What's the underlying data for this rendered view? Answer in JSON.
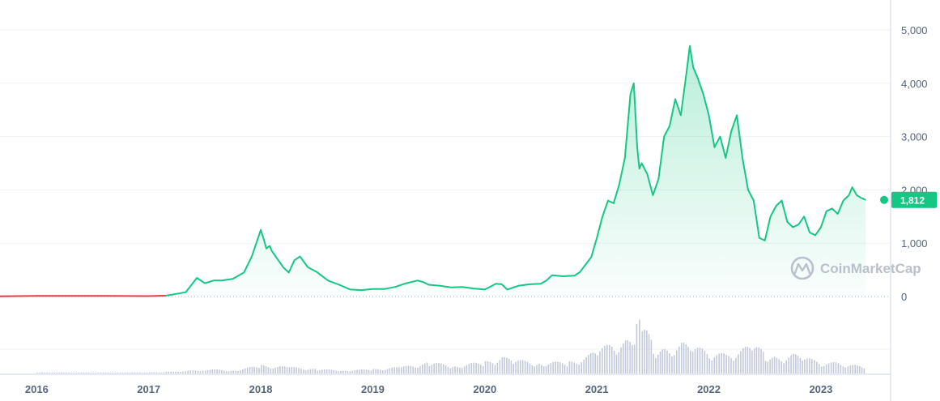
{
  "colors": {
    "line": "#16c784",
    "pre_line": "#ea3943",
    "volume": "#b8bfd4",
    "grid": "#eff2f5",
    "axis": "#cfd6e4",
    "badge": "#16c784",
    "watermark": "#b9c0cc"
  },
  "watermark": "CoinMarketCap",
  "watermark_icon": "coinmarketcap-logo-icon",
  "current_price_label": "1,812",
  "chart_data": {
    "type": "area",
    "title": "",
    "xlabel": "",
    "ylabel": "",
    "ylim": [
      0,
      5400
    ],
    "yticks": [
      0,
      1000,
      2000,
      3000,
      4000,
      5000
    ],
    "ytick_labels": [
      "0",
      "1,000",
      "2,000",
      "3,000",
      "4,000",
      "5,000"
    ],
    "xlim": [
      2015.6,
      2023.55
    ],
    "xticks": [
      2016,
      2017,
      2018,
      2019,
      2020,
      2021,
      2022,
      2023
    ],
    "xtick_labels": [
      "2016",
      "2017",
      "2018",
      "2019",
      "2020",
      "2021",
      "2022",
      "2023"
    ],
    "grid": true,
    "legend": "none",
    "x": [
      2015.6,
      2016.0,
      2016.5,
      2017.0,
      2017.15,
      2017.25,
      2017.33,
      2017.43,
      2017.5,
      2017.58,
      2017.65,
      2017.75,
      2017.85,
      2017.92,
      2018.0,
      2018.03,
      2018.05,
      2018.08,
      2018.1,
      2018.15,
      2018.2,
      2018.25,
      2018.3,
      2018.35,
      2018.42,
      2018.5,
      2018.6,
      2018.7,
      2018.8,
      2018.9,
      2019.0,
      2019.1,
      2019.2,
      2019.3,
      2019.4,
      2019.45,
      2019.5,
      2019.6,
      2019.7,
      2019.8,
      2019.9,
      2020.0,
      2020.1,
      2020.15,
      2020.2,
      2020.3,
      2020.4,
      2020.5,
      2020.55,
      2020.6,
      2020.7,
      2020.8,
      2020.85,
      2020.9,
      2020.95,
      2021.0,
      2021.05,
      2021.1,
      2021.15,
      2021.2,
      2021.25,
      2021.3,
      2021.33,
      2021.36,
      2021.38,
      2021.4,
      2021.45,
      2021.5,
      2021.55,
      2021.6,
      2021.65,
      2021.7,
      2021.75,
      2021.8,
      2021.83,
      2021.86,
      2021.9,
      2021.95,
      2022.0,
      2022.05,
      2022.1,
      2022.15,
      2022.2,
      2022.25,
      2022.3,
      2022.35,
      2022.4,
      2022.45,
      2022.5,
      2022.55,
      2022.6,
      2022.65,
      2022.7,
      2022.75,
      2022.8,
      2022.85,
      2022.9,
      2022.95,
      2023.0,
      2023.05,
      2023.1,
      2023.15,
      2023.2,
      2023.25,
      2023.28,
      2023.32,
      2023.36,
      2023.4
    ],
    "y": [
      1,
      10,
      12,
      8,
      15,
      50,
      80,
      350,
      250,
      300,
      300,
      330,
      450,
      750,
      1250,
      1050,
      900,
      950,
      850,
      700,
      550,
      450,
      680,
      750,
      550,
      460,
      300,
      220,
      130,
      120,
      140,
      140,
      180,
      250,
      300,
      270,
      220,
      200,
      170,
      180,
      150,
      130,
      240,
      230,
      130,
      200,
      230,
      240,
      300,
      400,
      380,
      390,
      460,
      600,
      740,
      1100,
      1500,
      1800,
      1750,
      2100,
      2600,
      3800,
      4000,
      2800,
      2400,
      2500,
      2300,
      1900,
      2200,
      3000,
      3200,
      3700,
      3400,
      4200,
      4700,
      4300,
      4100,
      3800,
      3400,
      2800,
      3000,
      2600,
      3100,
      3400,
      2600,
      2000,
      1800,
      1100,
      1050,
      1500,
      1700,
      1800,
      1400,
      1300,
      1350,
      1500,
      1200,
      1150,
      1300,
      1600,
      1650,
      1550,
      1800,
      1900,
      2050,
      1900,
      1850,
      1812
    ],
    "volume_note": "relative volume bars shown beneath price"
  },
  "volume_data": {
    "x": [
      2016.0,
      2016.5,
      2017.0,
      2017.3,
      2017.5,
      2017.75,
      2018.0,
      2018.25,
      2018.5,
      2018.75,
      2019.0,
      2019.25,
      2019.5,
      2019.75,
      2020.0,
      2020.15,
      2020.25,
      2020.5,
      2020.75,
      2020.9,
      2021.0,
      2021.15,
      2021.25,
      2021.35,
      2021.4,
      2021.5,
      2021.6,
      2021.75,
      2021.85,
      2022.0,
      2022.15,
      2022.3,
      2022.4,
      2022.5,
      2022.6,
      2022.75,
      2022.85,
      2023.0,
      2023.15,
      2023.3,
      2023.4
    ],
    "rel": [
      0.01,
      0.01,
      0.02,
      0.04,
      0.08,
      0.06,
      0.15,
      0.12,
      0.08,
      0.06,
      0.08,
      0.12,
      0.2,
      0.15,
      0.22,
      0.3,
      0.25,
      0.2,
      0.22,
      0.3,
      0.45,
      0.55,
      0.6,
      0.9,
      1.0,
      0.5,
      0.45,
      0.55,
      0.5,
      0.4,
      0.35,
      0.45,
      0.55,
      0.35,
      0.3,
      0.35,
      0.3,
      0.2,
      0.2,
      0.15,
      0.12
    ]
  }
}
